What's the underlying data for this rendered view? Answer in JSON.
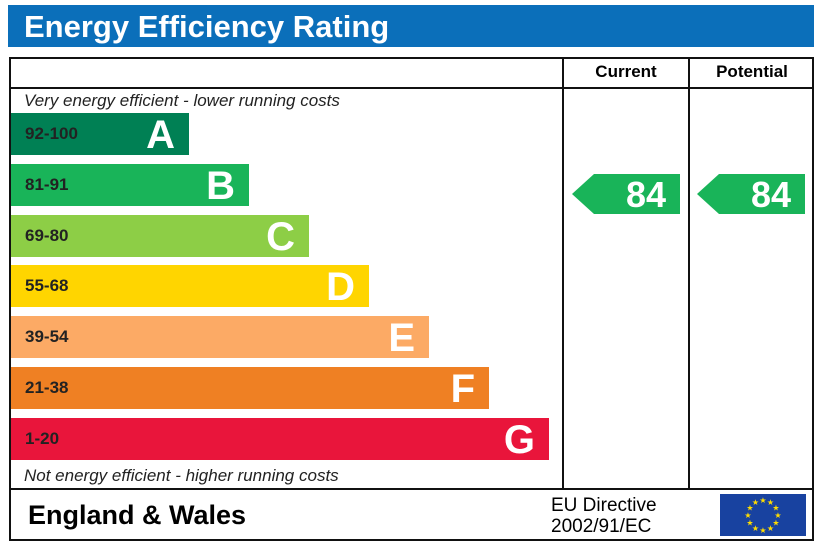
{
  "title": "Energy Efficiency Rating",
  "columns": {
    "current": "Current",
    "potential": "Potential"
  },
  "top_note": "Very energy efficient - lower running costs",
  "bottom_note": "Not energy efficient - higher running costs",
  "footer": {
    "region": "England & Wales",
    "directive_line1": "EU Directive",
    "directive_line2": "2002/91/EC",
    "flag_icon": "eu-flag-icon"
  },
  "chart_data": {
    "type": "bar",
    "title": "Energy Efficiency Rating",
    "bands": [
      {
        "range": "92-100",
        "letter": "A",
        "color": "#008054",
        "text_color": "#222222"
      },
      {
        "range": "81-91",
        "letter": "B",
        "color": "#19b459",
        "text_color": "#222222"
      },
      {
        "range": "69-80",
        "letter": "C",
        "color": "#8dce46",
        "text_color": "#222222"
      },
      {
        "range": "55-68",
        "letter": "D",
        "color": "#ffd500",
        "text_color": "#222222"
      },
      {
        "range": "39-54",
        "letter": "E",
        "color": "#fcaa65",
        "text_color": "#222222"
      },
      {
        "range": "21-38",
        "letter": "F",
        "color": "#ef8023",
        "text_color": "#222222"
      },
      {
        "range": "1-20",
        "letter": "G",
        "color": "#e9153b",
        "text_color": "#222222"
      }
    ],
    "current": {
      "value": 84,
      "band": "B",
      "color": "#19b459"
    },
    "potential": {
      "value": 84,
      "band": "B",
      "color": "#19b459"
    }
  }
}
